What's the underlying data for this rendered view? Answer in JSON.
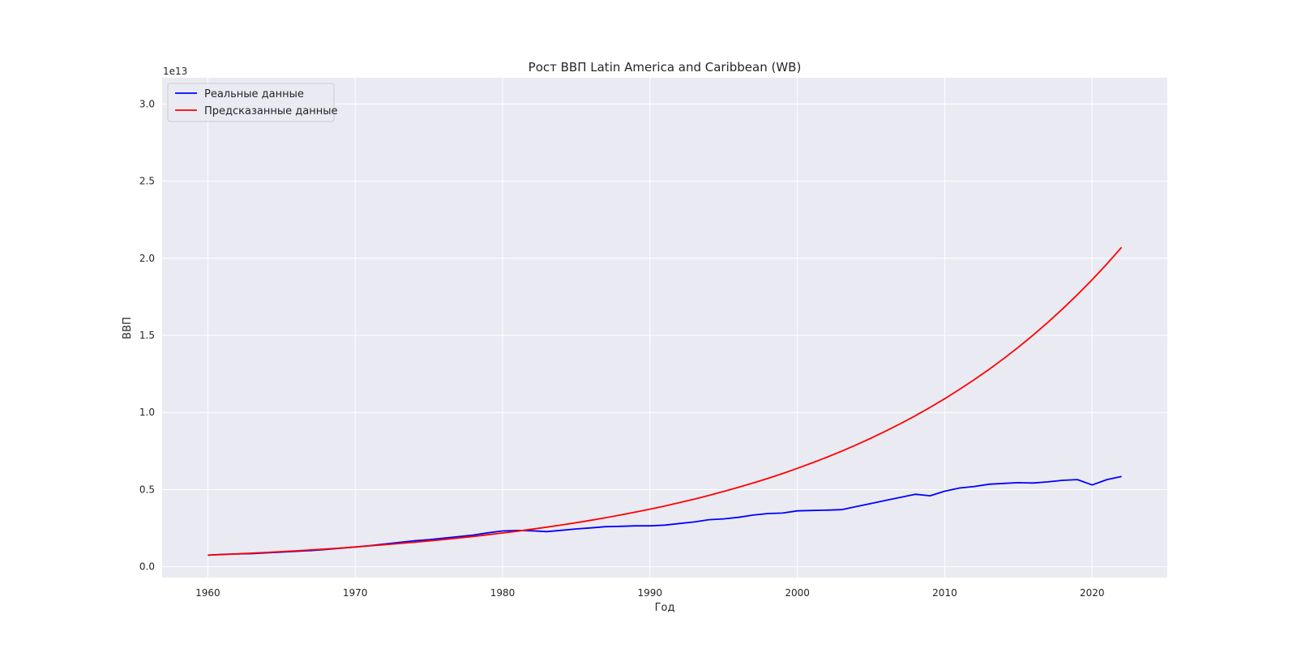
{
  "chart_data": {
    "type": "line",
    "title": "Рост ВВП Latin America and Caribbean (WB)",
    "xlabel": "Год",
    "ylabel": "ВВП",
    "y_multiplier": "1e13",
    "xlim": [
      1956.9,
      2025.1
    ],
    "ylim": [
      -0.07,
      3.17
    ],
    "x_ticks": [
      1960,
      1970,
      1980,
      1990,
      2000,
      2010,
      2020
    ],
    "y_ticks": [
      0.0,
      0.5,
      1.0,
      1.5,
      2.0,
      2.5,
      3.0
    ],
    "y_tick_labels": [
      "0.0",
      "0.5",
      "1.0",
      "1.5",
      "2.0",
      "2.5",
      "3.0"
    ],
    "grid": true,
    "legend_position": "upper left",
    "x": [
      1960,
      1961,
      1962,
      1963,
      1964,
      1965,
      1966,
      1967,
      1968,
      1969,
      1970,
      1971,
      1972,
      1973,
      1974,
      1975,
      1976,
      1977,
      1978,
      1979,
      1980,
      1981,
      1982,
      1983,
      1984,
      1985,
      1986,
      1987,
      1988,
      1989,
      1990,
      1991,
      1992,
      1993,
      1994,
      1995,
      1996,
      1997,
      1998,
      1999,
      2000,
      2001,
      2002,
      2003,
      2004,
      2005,
      2006,
      2007,
      2008,
      2009,
      2010,
      2011,
      2012,
      2013,
      2014,
      2015,
      2016,
      2017,
      2018,
      2019,
      2020,
      2021,
      2022
    ],
    "series": [
      {
        "name": "Реальные данные",
        "color": "#0000ff",
        "values": [
          0.075,
          0.08,
          0.083,
          0.085,
          0.09,
          0.095,
          0.1,
          0.105,
          0.112,
          0.12,
          0.128,
          0.137,
          0.147,
          0.158,
          0.168,
          0.175,
          0.185,
          0.195,
          0.205,
          0.22,
          0.232,
          0.235,
          0.233,
          0.228,
          0.236,
          0.245,
          0.252,
          0.26,
          0.262,
          0.265,
          0.265,
          0.27,
          0.28,
          0.29,
          0.305,
          0.31,
          0.32,
          0.335,
          0.345,
          0.348,
          0.362,
          0.365,
          0.367,
          0.37,
          0.39,
          0.41,
          0.43,
          0.45,
          0.47,
          0.46,
          0.49,
          0.51,
          0.52,
          0.535,
          0.54,
          0.545,
          0.543,
          0.55,
          0.56,
          0.565,
          0.53,
          0.565,
          0.585
        ]
      },
      {
        "name": "Предсказанные данные",
        "color": "#ff0000",
        "values": [
          0.075,
          0.0791,
          0.0835,
          0.0881,
          0.0929,
          0.098,
          0.1034,
          0.1091,
          0.1151,
          0.1214,
          0.128,
          0.1351,
          0.1425,
          0.1503,
          0.1586,
          0.1673,
          0.1765,
          0.1862,
          0.1964,
          0.2072,
          0.2186,
          0.2306,
          0.2433,
          0.2567,
          0.2708,
          0.2857,
          0.3014,
          0.318,
          0.3355,
          0.3539,
          0.3734,
          0.3939,
          0.4156,
          0.4384,
          0.4625,
          0.488,
          0.5148,
          0.5431,
          0.573,
          0.6045,
          0.6377,
          0.6728,
          0.7098,
          0.7489,
          0.79,
          0.8335,
          0.8793,
          0.9277,
          0.9787,
          1.0325,
          1.0893,
          1.1492,
          1.2124,
          1.2791,
          1.3494,
          1.4236,
          1.5019,
          1.5845,
          1.6717,
          1.7636,
          1.8606,
          1.963,
          2.071
        ]
      }
    ]
  },
  "colors": {
    "plot_background": "#eaeaf2",
    "grid": "#ffffff",
    "text": "#262626"
  }
}
